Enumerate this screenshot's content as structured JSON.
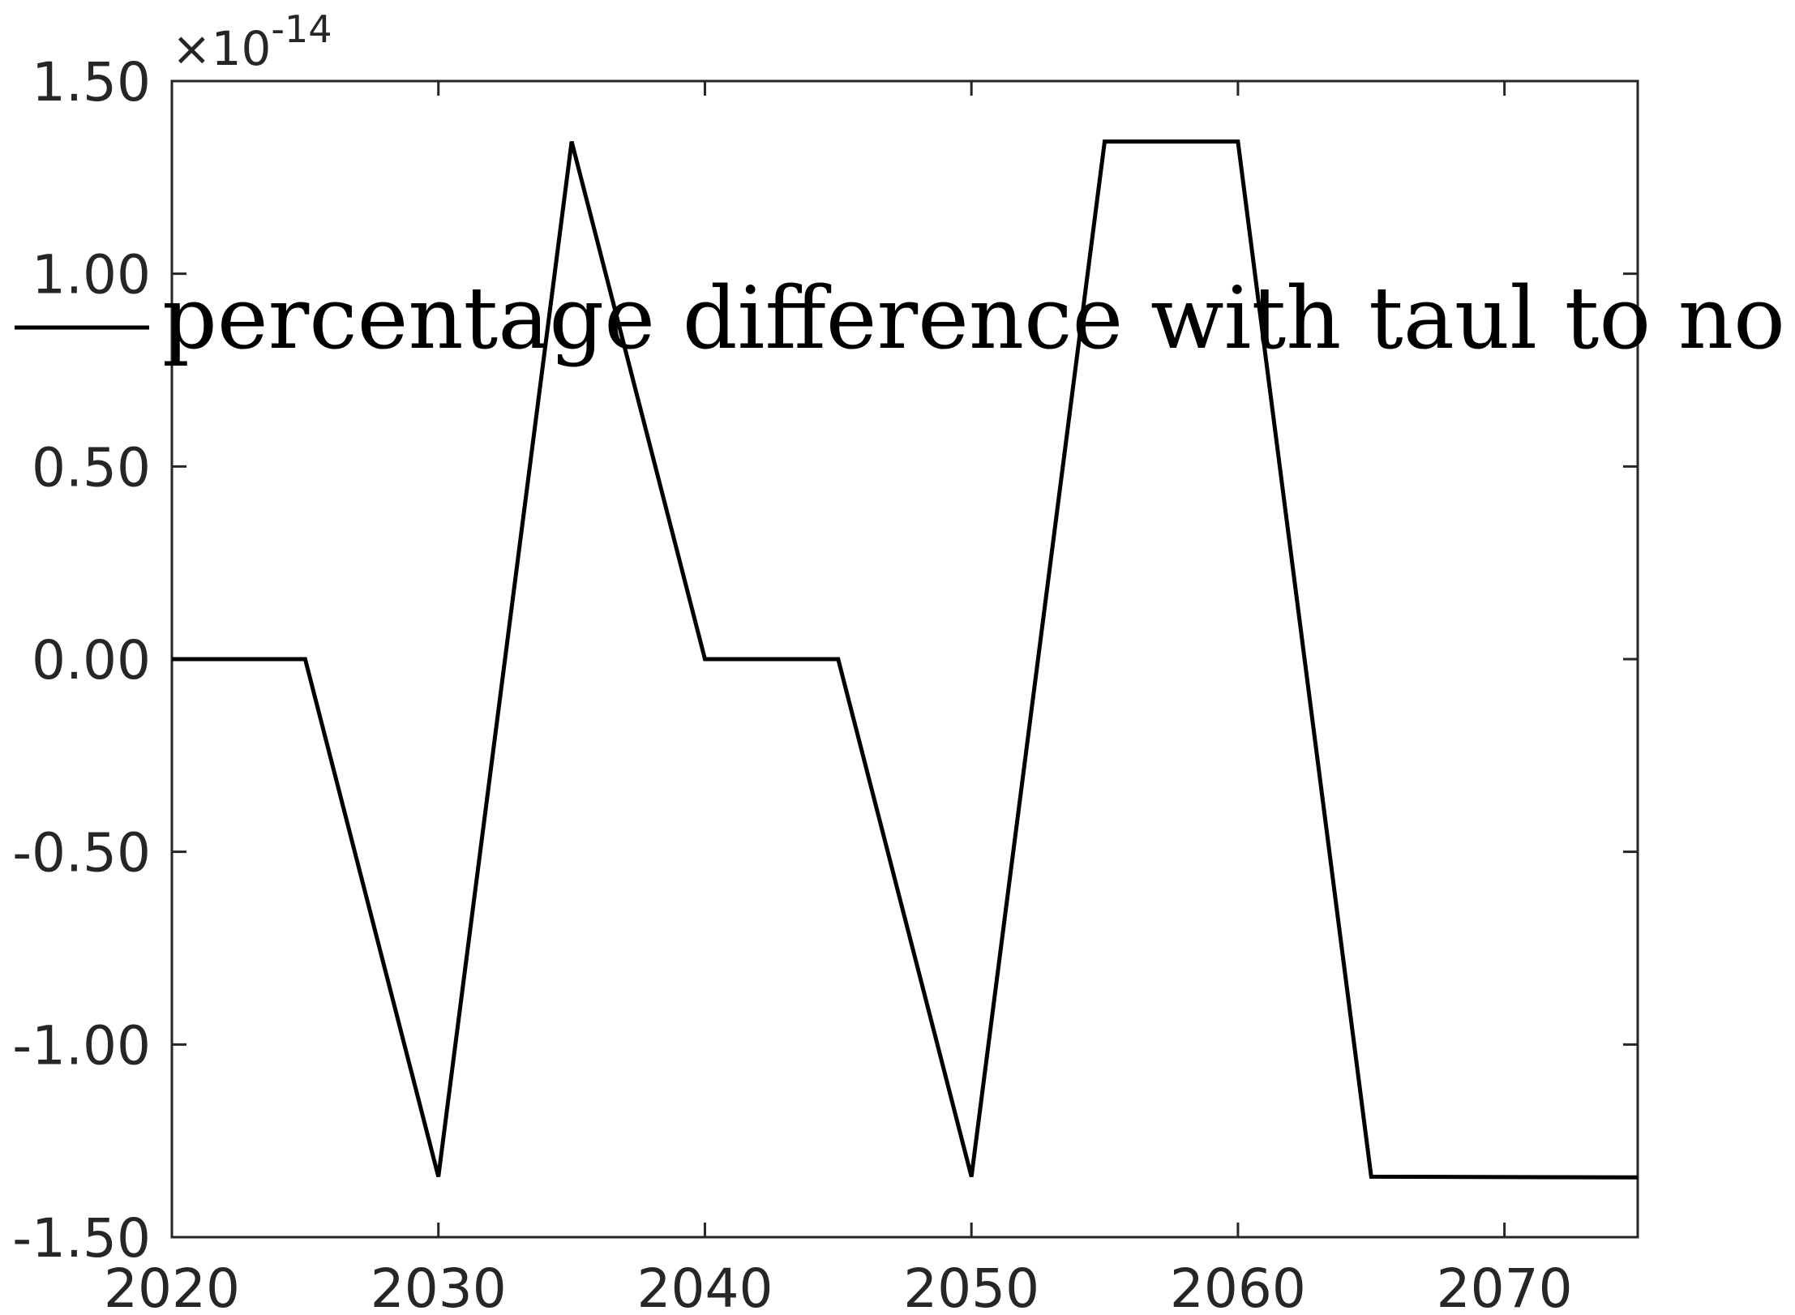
{
  "chart_data": {
    "type": "line",
    "title": "",
    "xlabel": "",
    "ylabel": "",
    "xlim": [
      2020,
      2075
    ],
    "ylim": [
      -1.5,
      1.5
    ],
    "y_multiplier_label": {
      "base": "×10",
      "exponent": "-14"
    },
    "x_ticks": [
      2020,
      2030,
      2040,
      2050,
      2060,
      2070
    ],
    "x_tick_labels": [
      "2020",
      "2030",
      "2040",
      "2050",
      "2060",
      "2070"
    ],
    "y_ticks": [
      -1.5,
      -1.0,
      -0.5,
      0.0,
      0.5,
      1.0,
      1.5
    ],
    "y_tick_labels": [
      "-1.50",
      "-1.00",
      "-0.50",
      "0.00",
      "0.50",
      "1.00",
      "1.50"
    ],
    "grid": false,
    "legend_position": "top",
    "series": [
      {
        "name": "percentage difference with taul to no taul",
        "color": "#000000",
        "x": [
          2020,
          2025,
          2030,
          2035,
          2040,
          2045,
          2050,
          2055,
          2060,
          2065,
          2075
        ],
        "y": [
          0,
          0,
          -1.343,
          1.343,
          0,
          0,
          -1.343,
          1.343,
          1.343,
          -1.343,
          -1.345
        ]
      }
    ]
  }
}
